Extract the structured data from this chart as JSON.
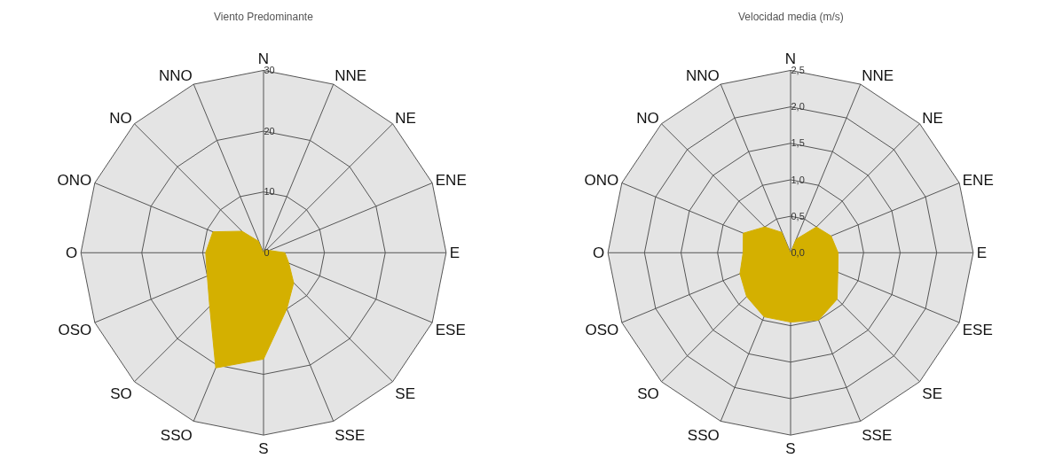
{
  "chart_data": [
    {
      "type": "radar",
      "title": "Viento Predominante",
      "categories": [
        "N",
        "NNE",
        "NE",
        "ENE",
        "E",
        "ESE",
        "SE",
        "SSE",
        "S",
        "SSO",
        "SO",
        "OSO",
        "O",
        "ONO",
        "NO",
        "NNO"
      ],
      "series": [
        {
          "color": "#d4b000",
          "values": [
            0,
            0.5,
            0.5,
            1,
            3.5,
            4.5,
            7,
            10,
            17.5,
            20.5,
            12.5,
            10,
            9.5,
            9,
            5,
            2
          ]
        }
      ],
      "ylim": [
        0,
        30
      ],
      "yticks": [
        0,
        10,
        20,
        30
      ],
      "grid": true,
      "marker": "none"
    },
    {
      "type": "radar",
      "title": "Velocidad media (m/s)",
      "categories": [
        "N",
        "NNE",
        "NE",
        "ENE",
        "E",
        "ESE",
        "SE",
        "SSE",
        "S",
        "SSO",
        "SO",
        "OSO",
        "O",
        "ONO",
        "NO",
        "NNO"
      ],
      "series": [
        {
          "color": "#d4b000",
          "values": [
            0,
            0.2,
            0.5,
            0.6,
            0.65,
            0.7,
            0.9,
            1.0,
            0.95,
            0.95,
            0.85,
            0.75,
            0.65,
            0.7,
            0.5,
            0.3
          ]
        }
      ],
      "ylim": [
        0,
        2.5
      ],
      "yticks": [
        {
          "value": 0,
          "label": "0,0"
        },
        {
          "value": 0.5,
          "label": "0,5"
        },
        {
          "value": 1,
          "label": "1,0"
        },
        {
          "value": 1.5,
          "label": "1,5"
        },
        {
          "value": 2,
          "label": "2,0"
        },
        {
          "value": 2.5,
          "label": "2,5"
        }
      ],
      "grid": true,
      "marker": "none"
    }
  ]
}
